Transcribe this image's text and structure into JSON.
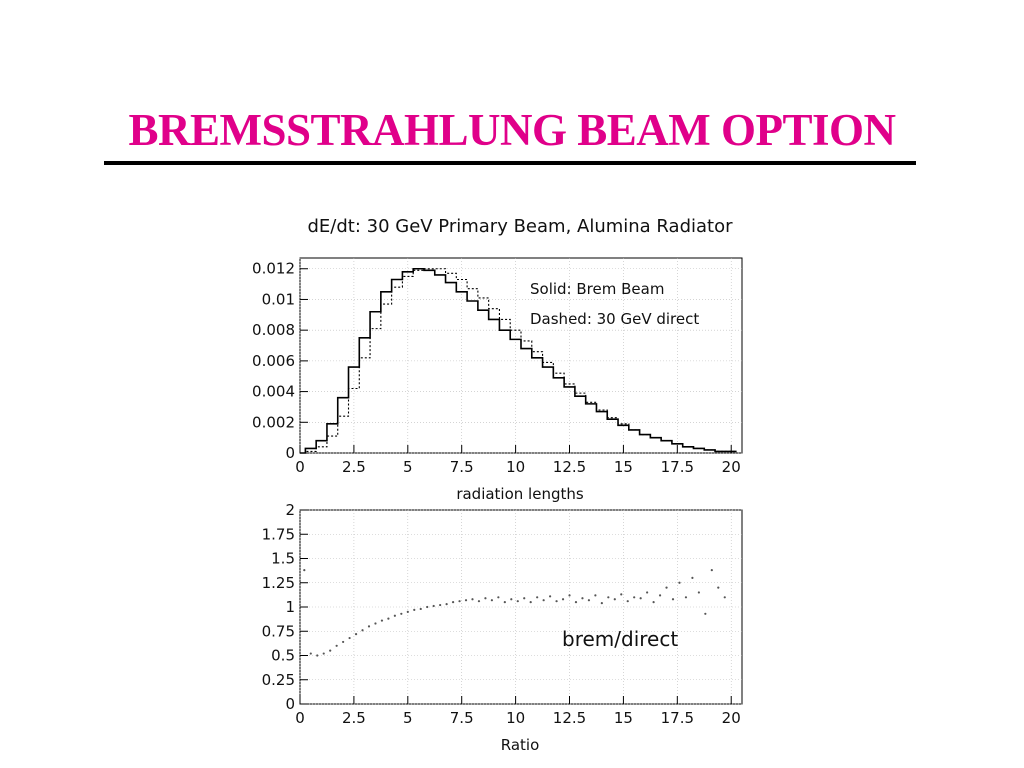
{
  "slide": {
    "title": "BREMSSTRAHLUNG BEAM OPTION"
  },
  "chart_data": [
    {
      "type": "line",
      "title": "dE/dt: 30 GeV Primary Beam, Alumina Radiator",
      "xlabel": "radiation lengths",
      "ylabel": "",
      "xlim": [
        0,
        20.5
      ],
      "ylim": [
        0,
        0.0127
      ],
      "x_ticks": [
        "0",
        "2.5",
        "5",
        "7.5",
        "10",
        "12.5",
        "15",
        "17.5",
        "20"
      ],
      "y_ticks": [
        "0",
        "0.002",
        "0.004",
        "0.006",
        "0.008",
        "0.01",
        "0.012"
      ],
      "grid": true,
      "legend_position": "top-right",
      "legend": [
        "Solid: Brem Beam",
        "Dashed: 30 GeV direct"
      ],
      "x": [
        0,
        0.5,
        1,
        1.5,
        2,
        2.5,
        3,
        3.5,
        4,
        4.5,
        5,
        5.5,
        6,
        6.5,
        7,
        7.5,
        8,
        8.5,
        9,
        9.5,
        10,
        10.5,
        11,
        11.5,
        12,
        12.5,
        13,
        13.5,
        14,
        14.5,
        15,
        15.5,
        16,
        16.5,
        17,
        17.5,
        18,
        18.5,
        19,
        19.5,
        20
      ],
      "series": [
        {
          "name": "Solid: Brem Beam",
          "style": "solid",
          "values": [
            0,
            0.0003,
            0.0008,
            0.0019,
            0.0036,
            0.0056,
            0.0075,
            0.0092,
            0.0105,
            0.0113,
            0.0118,
            0.012,
            0.0119,
            0.0116,
            0.0111,
            0.0105,
            0.0099,
            0.0093,
            0.0087,
            0.008,
            0.0074,
            0.0068,
            0.0062,
            0.0056,
            0.0049,
            0.0043,
            0.0037,
            0.0032,
            0.0027,
            0.0022,
            0.0018,
            0.0015,
            0.0012,
            0.001,
            0.0008,
            0.0006,
            0.0004,
            0.0003,
            0.0002,
            0.0001,
            0.0001
          ]
        },
        {
          "name": "Dashed: 30 GeV direct",
          "style": "dashed",
          "values": [
            0,
            0.0001,
            0.0004,
            0.0011,
            0.0024,
            0.0042,
            0.0062,
            0.0081,
            0.0097,
            0.0108,
            0.0115,
            0.0119,
            0.012,
            0.012,
            0.0117,
            0.0113,
            0.0107,
            0.0101,
            0.0094,
            0.0087,
            0.008,
            0.0073,
            0.0066,
            0.0059,
            0.0052,
            0.0045,
            0.0039,
            0.0033,
            0.0028,
            0.0023,
            0.0019,
            0.0015,
            0.0012,
            0.001,
            0.0008,
            0.0006,
            0.0004,
            0.0003,
            0.0002,
            0.0001,
            0.0001
          ]
        }
      ]
    },
    {
      "type": "scatter",
      "title": "",
      "xlabel": "Ratio",
      "ylabel": "",
      "xlim": [
        0,
        20.5
      ],
      "ylim": [
        0,
        2
      ],
      "x_ticks": [
        "0",
        "2.5",
        "5",
        "7.5",
        "10",
        "12.5",
        "15",
        "17.5",
        "20"
      ],
      "y_ticks": [
        "0",
        "0.25",
        "0.5",
        "0.75",
        "1",
        "1.25",
        "1.5",
        "1.75",
        "2"
      ],
      "grid": true,
      "annotation": "brem/direct",
      "x": [
        0.2,
        0.5,
        0.8,
        1.1,
        1.4,
        1.7,
        2.0,
        2.3,
        2.6,
        2.9,
        3.2,
        3.5,
        3.8,
        4.1,
        4.4,
        4.7,
        5.0,
        5.3,
        5.6,
        5.9,
        6.2,
        6.5,
        6.8,
        7.1,
        7.4,
        7.7,
        8.0,
        8.3,
        8.6,
        8.9,
        9.2,
        9.5,
        9.8,
        10.1,
        10.4,
        10.7,
        11.0,
        11.3,
        11.6,
        11.9,
        12.2,
        12.5,
        12.8,
        13.1,
        13.4,
        13.7,
        14.0,
        14.3,
        14.6,
        14.9,
        15.2,
        15.5,
        15.8,
        16.1,
        16.4,
        16.7,
        17.0,
        17.3,
        17.6,
        17.9,
        18.2,
        18.5,
        18.8,
        19.1,
        19.4,
        19.7
      ],
      "y": [
        1.38,
        0.52,
        0.5,
        0.52,
        0.55,
        0.6,
        0.64,
        0.68,
        0.72,
        0.76,
        0.8,
        0.83,
        0.86,
        0.88,
        0.91,
        0.93,
        0.95,
        0.97,
        0.98,
        1.0,
        1.01,
        1.02,
        1.03,
        1.05,
        1.06,
        1.07,
        1.08,
        1.06,
        1.09,
        1.07,
        1.1,
        1.05,
        1.08,
        1.06,
        1.09,
        1.05,
        1.1,
        1.07,
        1.11,
        1.06,
        1.08,
        1.12,
        1.05,
        1.09,
        1.07,
        1.12,
        1.04,
        1.1,
        1.08,
        1.13,
        1.06,
        1.1,
        1.09,
        1.15,
        1.05,
        1.12,
        1.2,
        1.08,
        1.25,
        1.1,
        1.3,
        1.15,
        0.93,
        1.38,
        1.2,
        1.1
      ]
    }
  ]
}
